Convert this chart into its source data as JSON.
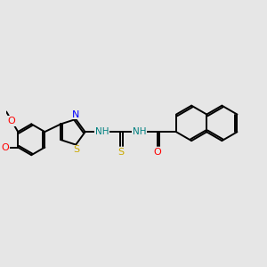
{
  "background_color": "#e6e6e6",
  "bond_color": "#000000",
  "bond_lw": 1.4,
  "atom_colors": {
    "N": "#0000ff",
    "S": "#ccaa00",
    "O": "#ff0000",
    "NH": "#008080",
    "C": "#000000"
  },
  "figsize": [
    3.0,
    3.0
  ],
  "dpi": 100
}
